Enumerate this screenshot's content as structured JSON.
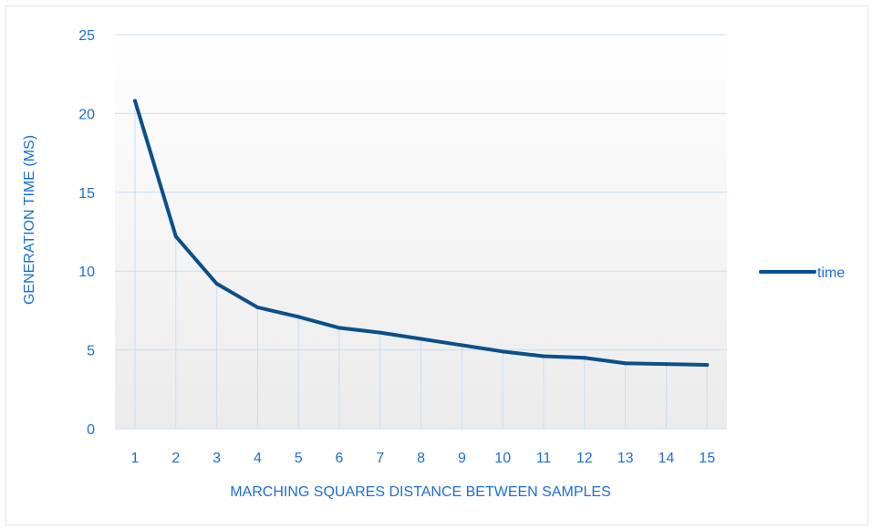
{
  "chart_data": {
    "type": "line",
    "title": "",
    "xlabel": "MARCHING SQUARES DISTANCE BETWEEN SAMPLES",
    "ylabel": "GENERATION TIME (MS)",
    "x": [
      1,
      2,
      3,
      4,
      5,
      6,
      7,
      8,
      9,
      10,
      11,
      12,
      13,
      14,
      15
    ],
    "categories": [
      "1",
      "2",
      "3",
      "4",
      "5",
      "6",
      "7",
      "8",
      "9",
      "10",
      "11",
      "12",
      "13",
      "14",
      "15"
    ],
    "series": [
      {
        "name": "time",
        "values": [
          20.8,
          12.2,
          9.2,
          7.7,
          7.1,
          6.4,
          6.1,
          5.7,
          5.3,
          4.9,
          4.6,
          4.5,
          4.15,
          4.1,
          4.05
        ],
        "color": "#0b4f8a"
      }
    ],
    "ylim": [
      0,
      25
    ],
    "yticks": [
      "0",
      "5",
      "10",
      "15",
      "20",
      "25"
    ],
    "grid": true,
    "legend_position": "right",
    "colors": {
      "text": "#1a6fd6",
      "grid": "#c9dff3",
      "line": "#0b4f8a"
    }
  }
}
